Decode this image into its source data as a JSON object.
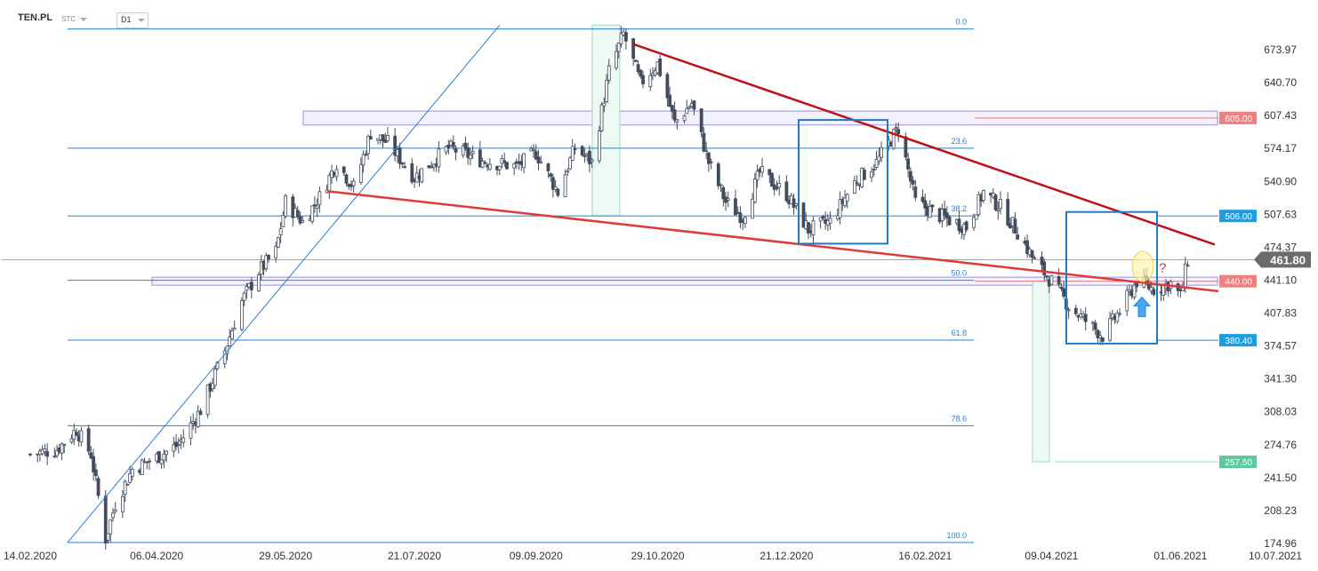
{
  "header": {
    "symbol": "TEN.PL",
    "type": "STC",
    "interval": "D1"
  },
  "colors": {
    "up_candle": "#ffffff",
    "down_candle": "#434c5e",
    "trendline_dark": "#c0101a",
    "trendline_light": "#e03a3a",
    "fib_line": "#2a7fd4",
    "box_blue": "#1f7bc4",
    "zone_violet": "#b8b0e8",
    "zone_green": "#9ed8c0",
    "price_tag_red": "#f08080",
    "price_tag_blue": "#1a9ee8",
    "price_tag_green": "#5ec8a0",
    "current_tag": "#6b6b6b"
  },
  "chart_data": {
    "type": "candlestick",
    "y_axis": {
      "range": [
        174.96,
        706
      ],
      "ticks": [
        "673.97",
        "640.70",
        "607.43",
        "574.17",
        "540.90",
        "507.63",
        "474.37",
        "441.10",
        "407.83",
        "374.57",
        "341.30",
        "308.03",
        "274.76",
        "241.50",
        "208.23",
        "174.96"
      ]
    },
    "x_axis": {
      "ticks": [
        "14.02.2020",
        "06.04.2020",
        "29.05.2020",
        "21.07.2020",
        "09.09.2020",
        "29.10.2020",
        "21.12.2020",
        "16.02.2021",
        "09.04.2021",
        "01.06.2021",
        "10.07.2021"
      ]
    },
    "current_price": "461.80",
    "price_tags": [
      {
        "value": "605.00",
        "price": 605.0,
        "color": "red"
      },
      {
        "value": "506.00",
        "price": 506.0,
        "color": "blue"
      },
      {
        "value": "440.00",
        "price": 440.0,
        "color": "red"
      },
      {
        "value": "380.40",
        "price": 380.4,
        "color": "blue"
      },
      {
        "value": "257.50",
        "price": 257.5,
        "color": "green"
      }
    ],
    "fibonacci": [
      {
        "level": "0.0",
        "price": 695
      },
      {
        "level": "23.6",
        "price": 574.5
      },
      {
        "level": "38.2",
        "price": 506
      },
      {
        "level": "50.0",
        "price": 441
      },
      {
        "level": "61.8",
        "price": 380.5
      },
      {
        "level": "78.6",
        "price": 294
      },
      {
        "level": "100.0",
        "price": 176
      }
    ],
    "annotation": "?",
    "candles": {
      "start": "14.02.2020",
      "end": "04.06.2021",
      "close_anchors": [
        [
          "14.02.2020",
          265
        ],
        [
          "25.02.2020",
          270
        ],
        [
          "04.03.2020",
          290
        ],
        [
          "10.03.2020",
          265
        ],
        [
          "16.03.2020",
          180
        ],
        [
          "20.03.2020",
          215
        ],
        [
          "27.03.2020",
          250
        ],
        [
          "06.04.2020",
          262
        ],
        [
          "15.04.2020",
          275
        ],
        [
          "24.04.2020",
          310
        ],
        [
          "04.05.2020",
          370
        ],
        [
          "11.05.2020",
          420
        ],
        [
          "18.05.2020",
          450
        ],
        [
          "25.05.2020",
          470
        ],
        [
          "29.05.2020",
          520
        ],
        [
          "05.06.2020",
          500
        ],
        [
          "12.06.2020",
          525
        ],
        [
          "19.06.2020",
          560
        ],
        [
          "26.06.2020",
          535
        ],
        [
          "03.07.2020",
          590
        ],
        [
          "10.07.2020",
          580
        ],
        [
          "21.07.2020",
          545
        ],
        [
          "04.08.2020",
          575
        ],
        [
          "18.08.2020",
          562
        ],
        [
          "01.09.2020",
          556
        ],
        [
          "09.09.2020",
          570
        ],
        [
          "18.09.2020",
          530
        ],
        [
          "25.09.2020",
          575
        ],
        [
          "02.10.2020",
          560
        ],
        [
          "09.10.2020",
          652
        ],
        [
          "15.10.2020",
          690
        ],
        [
          "22.10.2020",
          640
        ],
        [
          "29.10.2020",
          660
        ],
        [
          "05.11.2020",
          600
        ],
        [
          "12.11.2020",
          620
        ],
        [
          "19.11.2020",
          560
        ],
        [
          "26.11.2020",
          520
        ],
        [
          "03.12.2020",
          505
        ],
        [
          "10.12.2020",
          550
        ],
        [
          "21.12.2020",
          528
        ],
        [
          "30.12.2020",
          492
        ],
        [
          "08.01.2021",
          500
        ],
        [
          "18.01.2021",
          540
        ],
        [
          "27.01.2021",
          560
        ],
        [
          "05.02.2021",
          595
        ],
        [
          "12.02.2021",
          520
        ],
        [
          "23.02.2021",
          505
        ],
        [
          "05.03.2021",
          495
        ],
        [
          "12.03.2021",
          530
        ],
        [
          "19.03.2021",
          515
        ],
        [
          "26.03.2021",
          490
        ],
        [
          "02.04.2021",
          460
        ],
        [
          "09.04.2021",
          440
        ],
        [
          "16.04.2021",
          415
        ],
        [
          "23.04.2021",
          400
        ],
        [
          "30.04.2021",
          385
        ],
        [
          "07.05.2021",
          410
        ],
        [
          "14.05.2021",
          440
        ],
        [
          "21.05.2021",
          432
        ],
        [
          "28.05.2021",
          438
        ],
        [
          "01.06.2021",
          425
        ],
        [
          "04.06.2021",
          461.8
        ]
      ]
    }
  }
}
